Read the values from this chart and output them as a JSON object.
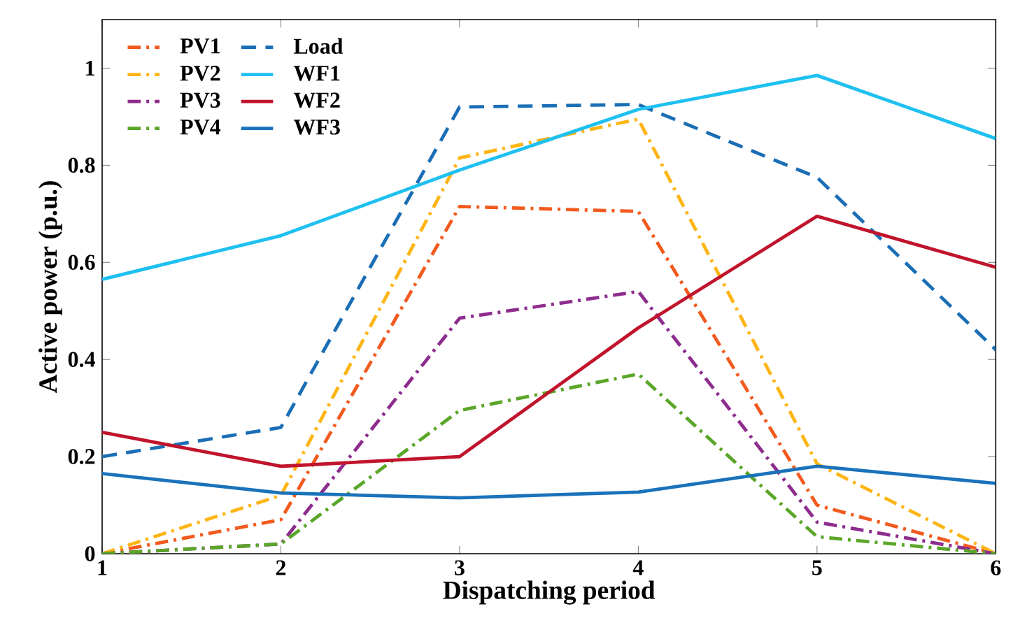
{
  "chart_data": {
    "type": "line",
    "xlabel": "Dispatching period",
    "ylabel": "Active power (p.u.)",
    "x": [
      1,
      2,
      3,
      4,
      5,
      6
    ],
    "xlim": [
      1,
      6
    ],
    "xticks": [
      1,
      2,
      3,
      4,
      5,
      6
    ],
    "ylim": [
      0,
      1.1
    ],
    "yticks": [
      0,
      0.2,
      0.4,
      0.6,
      0.8,
      1
    ],
    "legend": "top left",
    "grid": false,
    "series": [
      {
        "name": "PV1",
        "color": "#f25a1e",
        "line_style": "dashdot",
        "values": [
          0,
          0.07,
          0.715,
          0.705,
          0.1,
          0
        ]
      },
      {
        "name": "PV2",
        "color": "#fdb515",
        "line_style": "dashdot",
        "values": [
          0,
          0.12,
          0.815,
          0.895,
          0.185,
          0
        ]
      },
      {
        "name": "PV3",
        "color": "#8e2c8e",
        "line_style": "dashdot",
        "values": [
          0,
          0.02,
          0.485,
          0.54,
          0.065,
          0
        ]
      },
      {
        "name": "PV4",
        "color": "#5aa628",
        "line_style": "dashdot",
        "values": [
          0,
          0.02,
          0.295,
          0.37,
          0.035,
          0
        ]
      },
      {
        "name": "Load",
        "color": "#1a6eb5",
        "line_style": "dashed",
        "values": [
          0.2,
          0.26,
          0.92,
          0.925,
          0.775,
          0.42
        ]
      },
      {
        "name": "WF1",
        "color": "#1ec0f0",
        "line_style": "solid",
        "values": [
          0.565,
          0.655,
          0.79,
          0.915,
          0.985,
          0.855
        ]
      },
      {
        "name": "WF2",
        "color": "#c0142c",
        "line_style": "solid",
        "values": [
          0.25,
          0.18,
          0.2,
          0.465,
          0.695,
          0.59
        ]
      },
      {
        "name": "WF3",
        "color": "#1a72bb",
        "line_style": "solid",
        "values": [
          0.165,
          0.125,
          0.115,
          0.127,
          0.18,
          0.145
        ]
      }
    ]
  }
}
